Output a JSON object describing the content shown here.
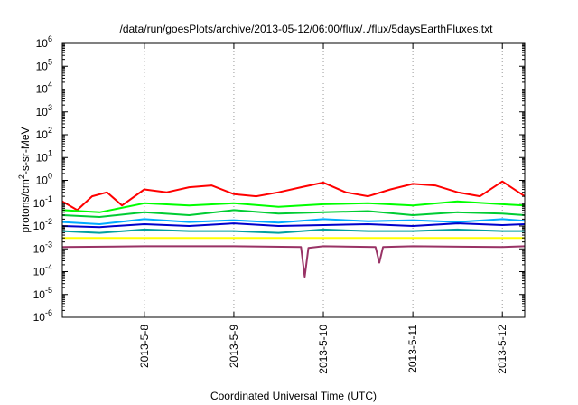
{
  "chart_data": {
    "type": "line",
    "title": "/data/run/goesPlots/archive/2013-05-12/06:00/flux/../flux/5daysEarthFluxes.txt",
    "xlabel": "Coordinated Universal Time (UTC)",
    "ylabel": {
      "prefix": "protons/cm",
      "sup": "2",
      "suffix": "-s-sr-MeV"
    },
    "x_range": [
      "2013-05-07T02:00",
      "2013-05-12T06:00"
    ],
    "x_ticks": [
      {
        "label": "2013-5-8",
        "date": "2013-05-08T00:00"
      },
      {
        "label": "2013-5-9",
        "date": "2013-05-09T00:00"
      },
      {
        "label": "2013-5-10",
        "date": "2013-05-10T00:00"
      },
      {
        "label": "2013-5-11",
        "date": "2013-05-11T00:00"
      },
      {
        "label": "2013-5-12",
        "date": "2013-05-12T00:00"
      }
    ],
    "y_scale": "log",
    "ylim": [
      1e-06,
      1000000.0
    ],
    "y_ticks": [
      {
        "base": "10",
        "exp": "6"
      },
      {
        "base": "10",
        "exp": "5"
      },
      {
        "base": "10",
        "exp": "4"
      },
      {
        "base": "10",
        "exp": "3"
      },
      {
        "base": "10",
        "exp": "2"
      },
      {
        "base": "10",
        "exp": "1"
      },
      {
        "base": "10",
        "exp": "0"
      },
      {
        "base": "10",
        "exp": "-1"
      },
      {
        "base": "10",
        "exp": "-2"
      },
      {
        "base": "10",
        "exp": "-3"
      },
      {
        "base": "10",
        "exp": "-4"
      },
      {
        "base": "10",
        "exp": "-5"
      },
      {
        "base": "10",
        "exp": "-6"
      }
    ],
    "grid": "vertical dotted at x ticks",
    "legend": "none",
    "series": [
      {
        "color": "#ff0000",
        "dates": [
          "2013-05-07T02:00",
          "2013-05-07T06:00",
          "2013-05-07T10:00",
          "2013-05-07T14:00",
          "2013-05-07T18:00",
          "2013-05-08T00:00",
          "2013-05-08T06:00",
          "2013-05-08T12:00",
          "2013-05-08T18:00",
          "2013-05-09T00:00",
          "2013-05-09T06:00",
          "2013-05-09T12:00",
          "2013-05-09T18:00",
          "2013-05-10T00:00",
          "2013-05-10T06:00",
          "2013-05-10T12:00",
          "2013-05-10T18:00",
          "2013-05-11T00:00",
          "2013-05-11T06:00",
          "2013-05-11T12:00",
          "2013-05-11T18:00",
          "2013-05-12T00:00",
          "2013-05-12T06:00"
        ],
        "values": [
          0.12,
          0.05,
          0.2,
          0.3,
          0.08,
          0.4,
          0.3,
          0.5,
          0.6,
          0.25,
          0.2,
          0.3,
          0.5,
          0.8,
          0.3,
          0.2,
          0.4,
          0.7,
          0.6,
          0.3,
          0.2,
          0.9,
          0.2
        ]
      },
      {
        "color": "#00ff00",
        "dates": [
          "2013-05-07T02:00",
          "2013-05-07T12:00",
          "2013-05-08T00:00",
          "2013-05-08T12:00",
          "2013-05-09T00:00",
          "2013-05-09T12:00",
          "2013-05-10T00:00",
          "2013-05-10T12:00",
          "2013-05-11T00:00",
          "2013-05-11T12:00",
          "2013-05-12T00:00",
          "2013-05-12T06:00"
        ],
        "values": [
          0.05,
          0.04,
          0.1,
          0.08,
          0.1,
          0.07,
          0.09,
          0.1,
          0.08,
          0.12,
          0.09,
          0.08
        ]
      },
      {
        "color": "#00cc33",
        "dates": [
          "2013-05-07T02:00",
          "2013-05-07T12:00",
          "2013-05-08T00:00",
          "2013-05-08T12:00",
          "2013-05-09T00:00",
          "2013-05-09T12:00",
          "2013-05-10T00:00",
          "2013-05-10T12:00",
          "2013-05-11T00:00",
          "2013-05-11T12:00",
          "2013-05-12T00:00",
          "2013-05-12T06:00"
        ],
        "values": [
          0.03,
          0.025,
          0.04,
          0.03,
          0.05,
          0.035,
          0.04,
          0.045,
          0.03,
          0.04,
          0.035,
          0.03
        ]
      },
      {
        "color": "#00aaff",
        "dates": [
          "2013-05-07T02:00",
          "2013-05-07T12:00",
          "2013-05-08T00:00",
          "2013-05-08T12:00",
          "2013-05-09T00:00",
          "2013-05-09T12:00",
          "2013-05-10T00:00",
          "2013-05-10T12:00",
          "2013-05-11T00:00",
          "2013-05-11T12:00",
          "2013-05-12T00:00",
          "2013-05-12T06:00"
        ],
        "values": [
          0.015,
          0.012,
          0.02,
          0.015,
          0.018,
          0.014,
          0.02,
          0.016,
          0.018,
          0.015,
          0.02,
          0.017
        ]
      },
      {
        "color": "#0000cc",
        "dates": [
          "2013-05-07T02:00",
          "2013-05-07T12:00",
          "2013-05-08T00:00",
          "2013-05-08T12:00",
          "2013-05-09T00:00",
          "2013-05-09T12:00",
          "2013-05-10T00:00",
          "2013-05-10T12:00",
          "2013-05-11T00:00",
          "2013-05-11T12:00",
          "2013-05-12T00:00",
          "2013-05-12T06:00"
        ],
        "values": [
          0.01,
          0.009,
          0.012,
          0.01,
          0.013,
          0.01,
          0.011,
          0.012,
          0.01,
          0.013,
          0.011,
          0.012
        ]
      },
      {
        "color": "#00a0a0",
        "dates": [
          "2013-05-07T02:00",
          "2013-05-07T12:00",
          "2013-05-08T00:00",
          "2013-05-08T12:00",
          "2013-05-09T00:00",
          "2013-05-09T12:00",
          "2013-05-10T00:00",
          "2013-05-10T12:00",
          "2013-05-11T00:00",
          "2013-05-11T12:00",
          "2013-05-12T00:00",
          "2013-05-12T06:00"
        ],
        "values": [
          0.006,
          0.005,
          0.007,
          0.006,
          0.006,
          0.005,
          0.007,
          0.006,
          0.006,
          0.007,
          0.006,
          0.006
        ]
      },
      {
        "color": "#ffff00",
        "dates": [
          "2013-05-07T02:00",
          "2013-05-08T00:00",
          "2013-05-09T00:00",
          "2013-05-10T00:00",
          "2013-05-11T00:00",
          "2013-05-12T00:00",
          "2013-05-12T06:00"
        ],
        "values": [
          0.003,
          0.003,
          0.003,
          0.003,
          0.003,
          0.003,
          0.003
        ]
      },
      {
        "color": "#993366",
        "dates": [
          "2013-05-07T02:00",
          "2013-05-08T00:00",
          "2013-05-09T00:00",
          "2013-05-09T18:00",
          "2013-05-09T19:00",
          "2013-05-09T20:00",
          "2013-05-10T00:00",
          "2013-05-10T14:00",
          "2013-05-10T15:00",
          "2013-05-10T16:00",
          "2013-05-11T00:00",
          "2013-05-12T00:00",
          "2013-05-12T06:00"
        ],
        "values": [
          0.0012,
          0.0013,
          0.0013,
          0.0012,
          6e-05,
          0.0011,
          0.0013,
          0.0012,
          0.00025,
          0.0012,
          0.0013,
          0.0012,
          0.0013
        ]
      }
    ]
  }
}
